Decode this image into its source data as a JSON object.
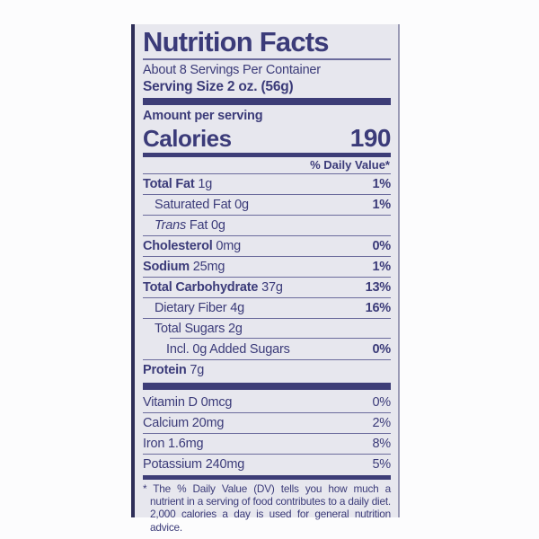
{
  "label": {
    "title": "Nutrition Facts",
    "servings_per_container": "About 8 Servings Per Container",
    "serving_size": "Serving Size 2 oz. (56g)",
    "amount_per_serving": "Amount per serving",
    "calories_label": "Calories",
    "calories_value": "190",
    "daily_value_header": "% Daily Value*",
    "nutrients": [
      {
        "name": "Total Fat",
        "amount": "1g",
        "dv": "1%",
        "bold": true,
        "indent": 0
      },
      {
        "name": "Saturated Fat",
        "amount": "0g",
        "dv": "1%",
        "bold": false,
        "indent": 1
      },
      {
        "name": "Trans",
        "italic": true,
        "amount": "Fat 0g",
        "dv": "",
        "bold": false,
        "indent": 1
      },
      {
        "name": "Cholesterol",
        "amount": "0mg",
        "dv": "0%",
        "bold": true,
        "indent": 0
      },
      {
        "name": "Sodium",
        "amount": "25mg",
        "dv": "1%",
        "bold": true,
        "indent": 0
      },
      {
        "name": "Total Carbohydrate",
        "amount": "37g",
        "dv": "13%",
        "bold": true,
        "indent": 0
      },
      {
        "name": "Dietary Fiber",
        "amount": "4g",
        "dv": "16%",
        "bold": false,
        "indent": 1
      },
      {
        "name": "Total Sugars",
        "amount": "2g",
        "dv": "",
        "bold": false,
        "indent": 1
      },
      {
        "name": "Incl. 0g Added Sugars",
        "amount": "",
        "dv": "0%",
        "bold": false,
        "indent": 2,
        "rule_indent": true
      },
      {
        "name": "Protein",
        "amount": "7g",
        "dv": "",
        "bold": true,
        "indent": 0
      }
    ],
    "vitamins": [
      {
        "name": "Vitamin D 0mcg",
        "dv": "0%"
      },
      {
        "name": "Calcium 20mg",
        "dv": "2%"
      },
      {
        "name": "Iron 1.6mg",
        "dv": "8%"
      },
      {
        "name": "Potassium 240mg",
        "dv": "5%"
      }
    ],
    "footnote": "* The % Daily Value (DV) tells you how much a nutrient in a serving of food contributes to a daily diet. 2,000 calories a day is used for general nutrition advice."
  },
  "colors": {
    "ink": "#3b3b79",
    "hairline": "#6b6b9c",
    "bar": "#3d3d77",
    "label_background": "#e7e7ee",
    "page_background": "#fcfcfd",
    "border_left": "#2e2e58",
    "border_right": "#9a9ab5"
  }
}
